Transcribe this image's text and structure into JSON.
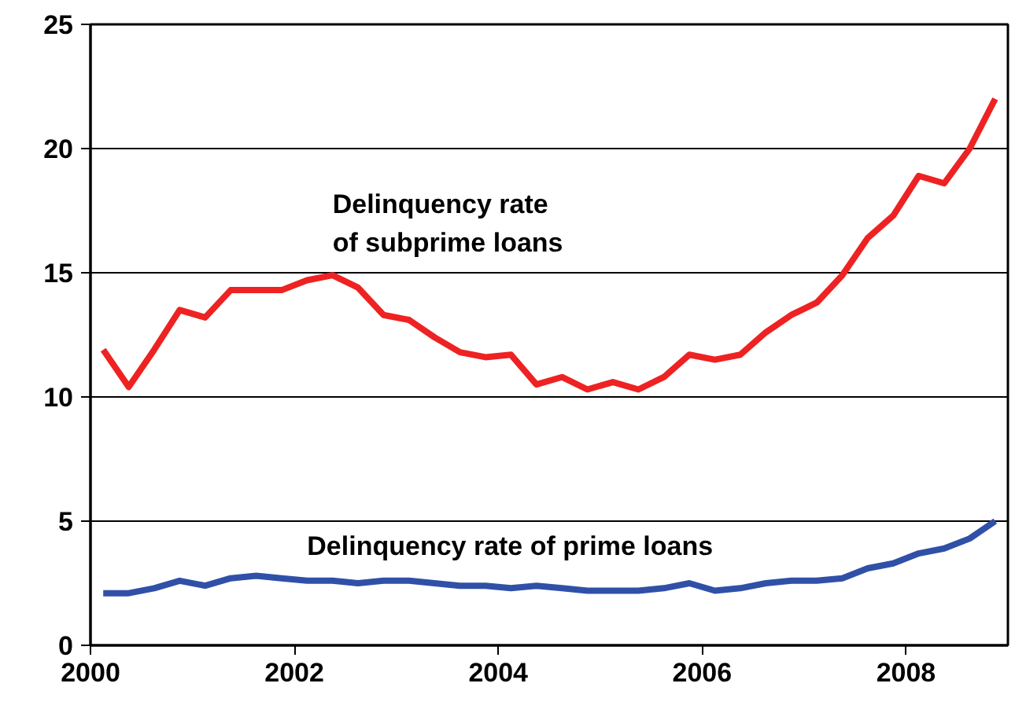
{
  "chart_data": {
    "type": "line",
    "x": [
      2000.125,
      2000.375,
      2000.625,
      2000.875,
      2001.125,
      2001.375,
      2001.625,
      2001.875,
      2002.125,
      2002.375,
      2002.625,
      2002.875,
      2003.125,
      2003.375,
      2003.625,
      2003.875,
      2004.125,
      2004.375,
      2004.625,
      2004.875,
      2005.125,
      2005.375,
      2005.625,
      2005.875,
      2006.125,
      2006.375,
      2006.625,
      2006.875,
      2007.125,
      2007.375,
      2007.625,
      2007.875,
      2008.125,
      2008.375,
      2008.625,
      2008.875
    ],
    "series": [
      {
        "name": "Delinquency rate of subprime loans",
        "color": "#ee2222",
        "values": [
          11.9,
          10.4,
          11.9,
          13.5,
          13.2,
          14.3,
          14.3,
          14.3,
          14.7,
          14.9,
          14.4,
          13.3,
          13.1,
          12.4,
          11.8,
          11.6,
          11.7,
          10.5,
          10.8,
          10.3,
          10.6,
          10.3,
          10.8,
          11.7,
          11.5,
          11.7,
          12.6,
          13.3,
          13.8,
          14.9,
          16.4,
          17.3,
          18.9,
          18.6,
          20.0,
          22.0
        ]
      },
      {
        "name": "Delinquency rate of prime loans",
        "color": "#3050a8",
        "values": [
          2.1,
          2.1,
          2.3,
          2.6,
          2.4,
          2.7,
          2.8,
          2.7,
          2.6,
          2.6,
          2.5,
          2.6,
          2.6,
          2.5,
          2.4,
          2.4,
          2.3,
          2.4,
          2.3,
          2.2,
          2.2,
          2.2,
          2.3,
          2.5,
          2.2,
          2.3,
          2.5,
          2.6,
          2.6,
          2.7,
          3.1,
          3.3,
          3.7,
          3.9,
          4.3,
          5.0
        ]
      }
    ],
    "xlim": [
      2000,
      2009
    ],
    "xticks": [
      2000,
      2002,
      2004,
      2006,
      2008
    ],
    "ylim": [
      0,
      25
    ],
    "yticks": [
      0,
      5,
      10,
      15,
      20,
      25
    ],
    "grid": "y",
    "marker": "none",
    "line_style": "solid"
  }
}
